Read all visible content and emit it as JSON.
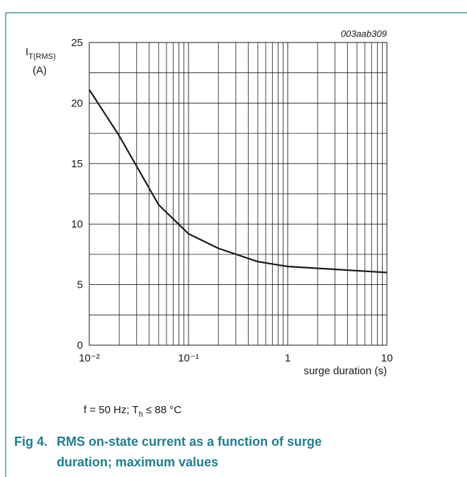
{
  "chart_data": {
    "type": "line",
    "annotation": "003aab309",
    "ylabel": {
      "symbol": "I",
      "subscript": "T(RMS)",
      "unit": "(A)"
    },
    "xlabel": "surge duration (s)",
    "x": [
      0.01,
      0.02,
      0.05,
      0.1,
      0.2,
      0.5,
      1,
      10
    ],
    "values": [
      21.1,
      17.3,
      11.6,
      9.2,
      8.0,
      6.9,
      6.5,
      6.0
    ],
    "color": "#1a1a1a",
    "xscale": "log",
    "xlim": [
      0.01,
      10
    ],
    "xticks": [
      {
        "value": 0.01,
        "label": "10⁻²"
      },
      {
        "value": 0.1,
        "label": "10⁻¹"
      },
      1,
      10
    ],
    "xminor": [
      0.02,
      0.03,
      0.04,
      0.05,
      0.06,
      0.07,
      0.08,
      0.09,
      0.2,
      0.3,
      0.4,
      0.5,
      0.6,
      0.7,
      0.8,
      0.9,
      2,
      3,
      4,
      5,
      6,
      7,
      8,
      9
    ],
    "ylim": [
      0,
      25
    ],
    "yticks": [
      0,
      5,
      10,
      15,
      20,
      25
    ],
    "yminor": [
      2.5,
      7.5,
      12.5,
      17.5,
      22.5
    ],
    "grid": true,
    "note": {
      "text": "f = 50 Hz; T",
      "subscript": "h",
      "rest": " ≤ 88 °C"
    },
    "caption": {
      "number": "Fig 4.",
      "lines": [
        "RMS on-state current as a function of surge",
        "duration; maximum values"
      ]
    }
  }
}
